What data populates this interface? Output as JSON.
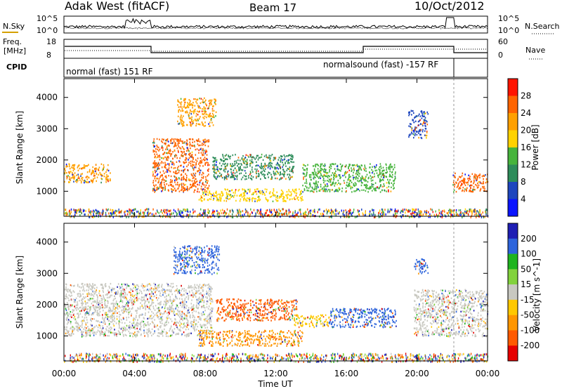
{
  "header": {
    "radar": "Adak West (fitACF)",
    "beam": "Beam 17",
    "date": "10/Oct/2012"
  },
  "panels": {
    "nsky": {
      "left_label": "N.Sky",
      "right_label": "N.Search",
      "ticks_left": [
        "10^5",
        "10^0"
      ],
      "ticks_right": [
        "10^5",
        "10^0"
      ]
    },
    "freq": {
      "left_label_line1": "Freq.",
      "left_label_line2": "[MHz]",
      "ticks_left": [
        "18",
        "8"
      ],
      "ticks_right": [
        "60",
        "0"
      ],
      "right_label": "Nave",
      "cpid_label": "CPID",
      "cpid_modes": [
        "normal (fast) 151 RF",
        "normalsound (fast) -157 RF"
      ]
    }
  },
  "colors": {
    "power_scale": [
      "#0a14ff",
      "#1e46be",
      "#2d8c5a",
      "#46b43c",
      "#ffd200",
      "#ffa000",
      "#ff6400",
      "#ff1400"
    ],
    "velocity_scale": [
      "#1e1eb4",
      "#2d64dc",
      "#1eb41e",
      "#82d23c",
      "#c8c8c0",
      "#ffc800",
      "#ff9600",
      "#ff5a00",
      "#e60000"
    ]
  },
  "chart_data": [
    {
      "type": "heatmap",
      "title": "",
      "xlabel": "",
      "ylabel": "Slant Range [km]",
      "ylim": [
        200,
        4600
      ],
      "x_ticks": [
        "00:00",
        "04:00",
        "08:00",
        "12:00",
        "16:00",
        "20:00",
        "00:00"
      ],
      "y_ticks": [
        "1000",
        "2000",
        "3000",
        "4000"
      ],
      "colorbar": {
        "label": "Power [dB]",
        "ticks": [
          "4",
          "8",
          "12",
          "16",
          "20",
          "24",
          "28"
        ]
      },
      "features": [
        {
          "t_start": 0.0,
          "t_end": 2.6,
          "range_start": 1300,
          "range_end": 1900,
          "value_db": 22
        },
        {
          "t_start": 5.0,
          "t_end": 8.2,
          "range_start": 1000,
          "range_end": 2700,
          "value_db": 24
        },
        {
          "t_start": 6.4,
          "t_end": 8.6,
          "range_start": 3100,
          "range_end": 4000,
          "value_db": 20
        },
        {
          "t_start": 7.6,
          "t_end": 13.5,
          "range_start": 700,
          "range_end": 1100,
          "value_db": 18
        },
        {
          "t_start": 8.4,
          "t_end": 13.0,
          "range_start": 1400,
          "range_end": 2200,
          "value_db": 10
        },
        {
          "t_start": 13.5,
          "t_end": 18.8,
          "range_start": 1000,
          "range_end": 1900,
          "value_db": 12
        },
        {
          "t_start": 19.5,
          "t_end": 20.6,
          "range_start": 2700,
          "range_end": 3600,
          "value_db": 6
        },
        {
          "t_start": 22.0,
          "t_end": 24.0,
          "range_start": 1000,
          "range_end": 1600,
          "value_db": 24
        }
      ]
    },
    {
      "type": "heatmap",
      "title": "",
      "xlabel": "Time UT",
      "ylabel": "Slant Range [km]",
      "ylim": [
        200,
        4600
      ],
      "x_ticks": [
        "00:00",
        "04:00",
        "08:00",
        "12:00",
        "16:00",
        "20:00",
        "00:00"
      ],
      "y_ticks": [
        "1000",
        "2000",
        "3000",
        "4000"
      ],
      "colorbar": {
        "label": "Velocity [m s^-1]",
        "ticks": [
          "200",
          "100",
          "50",
          "15",
          "-15",
          "-50",
          "-100",
          "-200"
        ]
      },
      "features": [
        {
          "t_start": 0.0,
          "t_end": 8.4,
          "range_start": 1000,
          "range_end": 2700,
          "value_ms": 0
        },
        {
          "t_start": 6.2,
          "t_end": 8.8,
          "range_start": 3000,
          "range_end": 3900,
          "value_ms": 180
        },
        {
          "t_start": 8.6,
          "t_end": 13.2,
          "range_start": 1500,
          "range_end": 2200,
          "value_ms": -180
        },
        {
          "t_start": 7.6,
          "t_end": 13.5,
          "range_start": 700,
          "range_end": 1200,
          "value_ms": -70
        },
        {
          "t_start": 13.0,
          "t_end": 15.0,
          "range_start": 1300,
          "range_end": 1700,
          "value_ms": -40
        },
        {
          "t_start": 15.0,
          "t_end": 18.8,
          "range_start": 1300,
          "range_end": 1900,
          "value_ms": 120
        },
        {
          "t_start": 19.8,
          "t_end": 20.6,
          "range_start": 3000,
          "range_end": 3500,
          "value_ms": 180
        },
        {
          "t_start": 19.8,
          "t_end": 24.0,
          "range_start": 1000,
          "range_end": 2500,
          "value_ms": 0
        }
      ]
    }
  ]
}
